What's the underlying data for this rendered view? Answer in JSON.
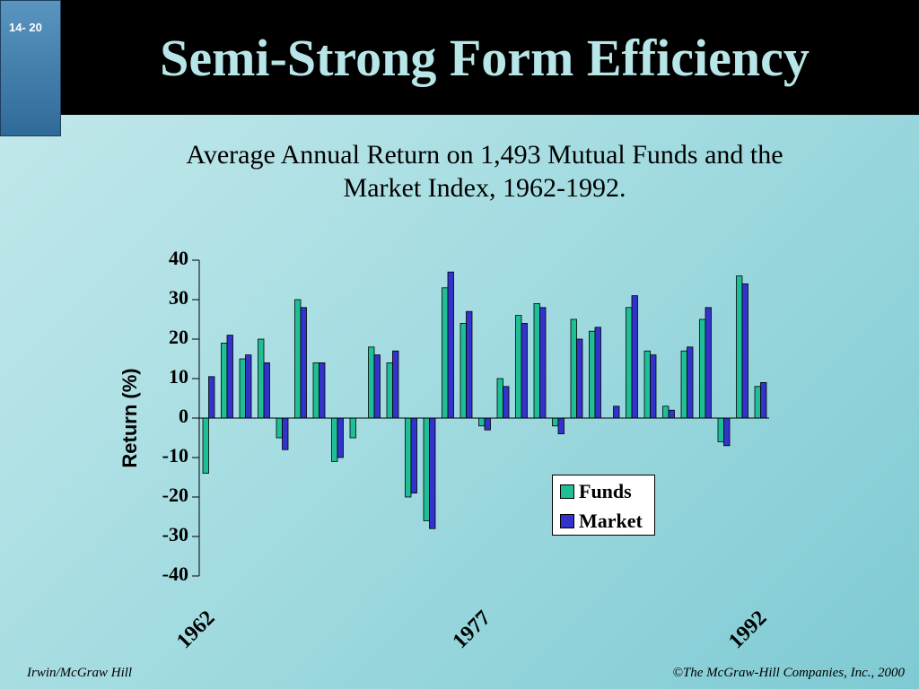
{
  "slide_number": "14- 20",
  "title": "Semi-Strong Form Efficiency",
  "subtitle_line1": "Average Annual Return on 1,493 Mutual Funds and the",
  "subtitle_line2": "Market Index, 1962-1992.",
  "footer_left": "Irwin/McGraw Hill",
  "footer_right": "©The McGraw-Hill Companies, Inc., 2000",
  "colors": {
    "funds": "#1fbf96",
    "market": "#3333cc",
    "title": "#b8e6e8",
    "header": "#000000"
  },
  "chart_data": {
    "type": "bar",
    "title": "Average Annual Return on 1,493 Mutual Funds and the Market Index, 1962-1992.",
    "ylabel": "Return (%)",
    "xlabel": "",
    "ylim": [
      -40,
      40
    ],
    "yticks": [
      40,
      30,
      20,
      10,
      0,
      -10,
      -20,
      -30,
      -40
    ],
    "x": [
      1962,
      1963,
      1964,
      1965,
      1966,
      1967,
      1968,
      1969,
      1970,
      1971,
      1972,
      1973,
      1974,
      1975,
      1976,
      1977,
      1978,
      1979,
      1980,
      1981,
      1982,
      1983,
      1984,
      1985,
      1986,
      1987,
      1988,
      1989,
      1990,
      1991,
      1992
    ],
    "x_tick_labels": [
      "1962",
      "1977",
      "1992"
    ],
    "legend_position": "inside-bottom-right",
    "grid": false,
    "series": [
      {
        "name": "Funds",
        "values": [
          -14,
          19,
          15,
          20,
          -5,
          30,
          14,
          -11,
          -5,
          18,
          14,
          -20,
          -26,
          33,
          24,
          -2,
          10,
          26,
          29,
          -2,
          25,
          22,
          0,
          28,
          17,
          3,
          17,
          25,
          -6,
          36,
          8
        ]
      },
      {
        "name": "Market",
        "values": [
          10.5,
          21,
          16,
          14,
          -8,
          28,
          14,
          -10,
          0,
          16,
          17,
          -19,
          -28,
          37,
          27,
          -3,
          8,
          24,
          28,
          -4,
          20,
          23,
          3,
          31,
          16,
          2,
          18,
          28,
          -7,
          34,
          9
        ]
      }
    ]
  }
}
